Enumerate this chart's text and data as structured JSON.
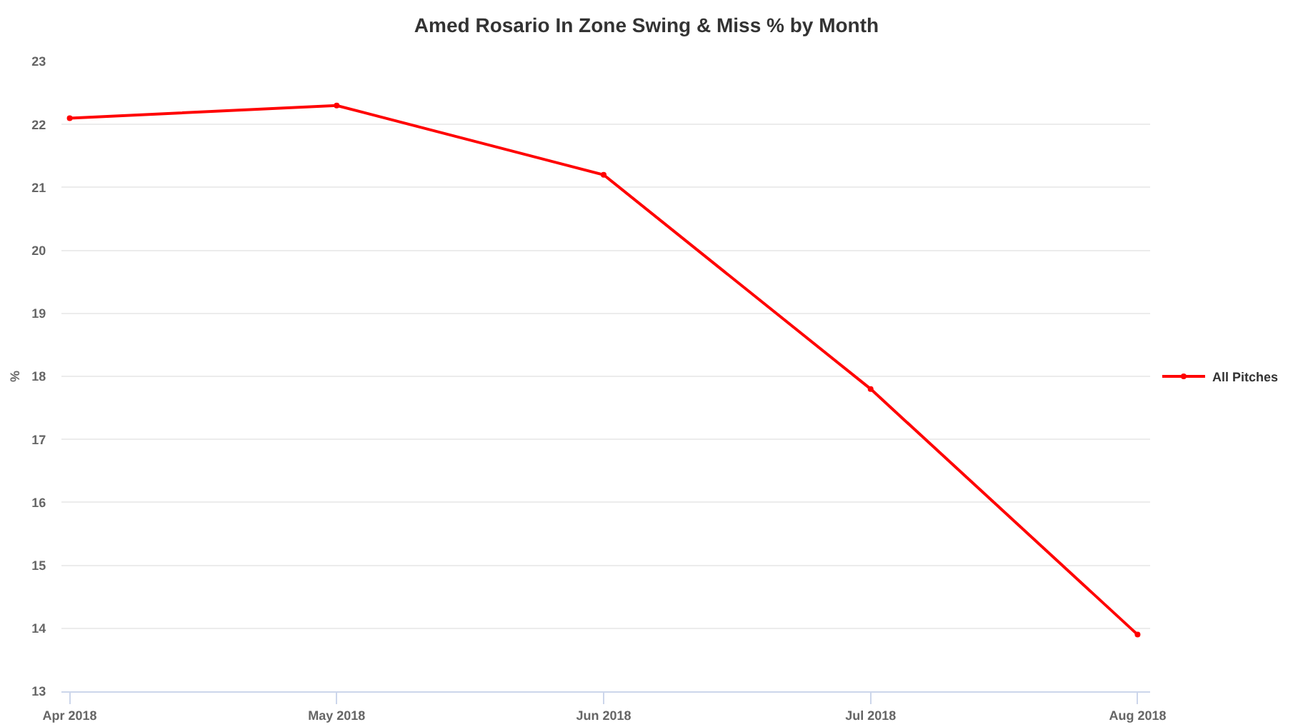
{
  "chart_data": {
    "type": "line",
    "title": "Amed Rosario In Zone Swing & Miss % by Month",
    "ylabel": "%",
    "categories": [
      "Apr 2018",
      "May 2018",
      "Jun 2018",
      "Jul 2018",
      "Aug 2018"
    ],
    "series": [
      {
        "name": "All Pitches",
        "color": "#ff0000",
        "values": [
          22.1,
          22.3,
          21.2,
          17.8,
          13.9
        ]
      }
    ],
    "ylim": [
      13,
      23
    ],
    "yticks": [
      13,
      14,
      15,
      16,
      17,
      18,
      19,
      20,
      21,
      22,
      23
    ],
    "grid": "y",
    "legend": "right",
    "marker": "circle",
    "line_style": "solid"
  }
}
